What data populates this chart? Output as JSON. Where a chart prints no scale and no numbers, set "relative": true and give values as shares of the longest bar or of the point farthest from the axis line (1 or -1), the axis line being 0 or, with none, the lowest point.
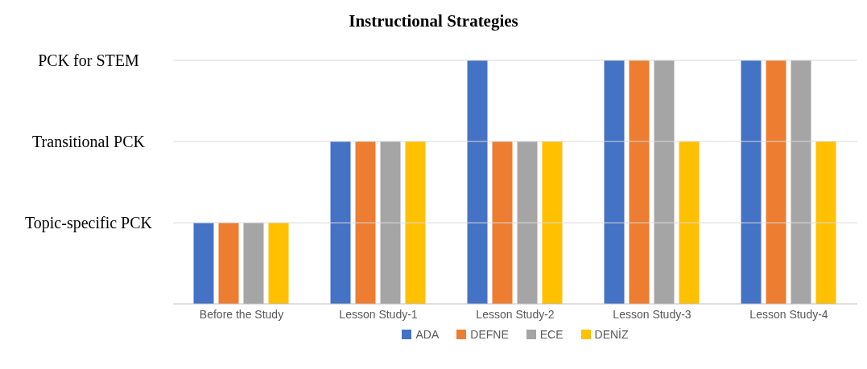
{
  "chart_data": {
    "type": "bar",
    "title": "Instructional Strategies",
    "categories": [
      "Before the Study",
      "Lesson Study-1",
      "Lesson Study-2",
      "Lesson Study-3",
      "Lesson Study-4"
    ],
    "series": [
      {
        "name": "ADA",
        "color": "#4472c4",
        "values": [
          0.333,
          0.667,
          1,
          1,
          1
        ]
      },
      {
        "name": "DEFNE",
        "color": "#ed7d31",
        "values": [
          0.333,
          0.667,
          0.667,
          1,
          1
        ]
      },
      {
        "name": "ECE",
        "color": "#a5a5a5",
        "values": [
          0.333,
          0.667,
          0.667,
          1,
          1
        ]
      },
      {
        "name": "DENİZ",
        "color": "#ffc000",
        "values": [
          0.333,
          0.667,
          0.667,
          0.667,
          0.667
        ]
      }
    ],
    "relative": true,
    "ref_lines": [
      {
        "axis": "y",
        "value": 0.333,
        "label": "Topic-specific PCK",
        "color": "#d9d9d9"
      },
      {
        "axis": "y",
        "value": 0.667,
        "label": "Transitional PCK",
        "color": "#d9d9d9"
      },
      {
        "axis": "y",
        "value": 1,
        "label": "PCK for STEM",
        "color": "#d9d9d9"
      }
    ],
    "legend": "bottom"
  }
}
